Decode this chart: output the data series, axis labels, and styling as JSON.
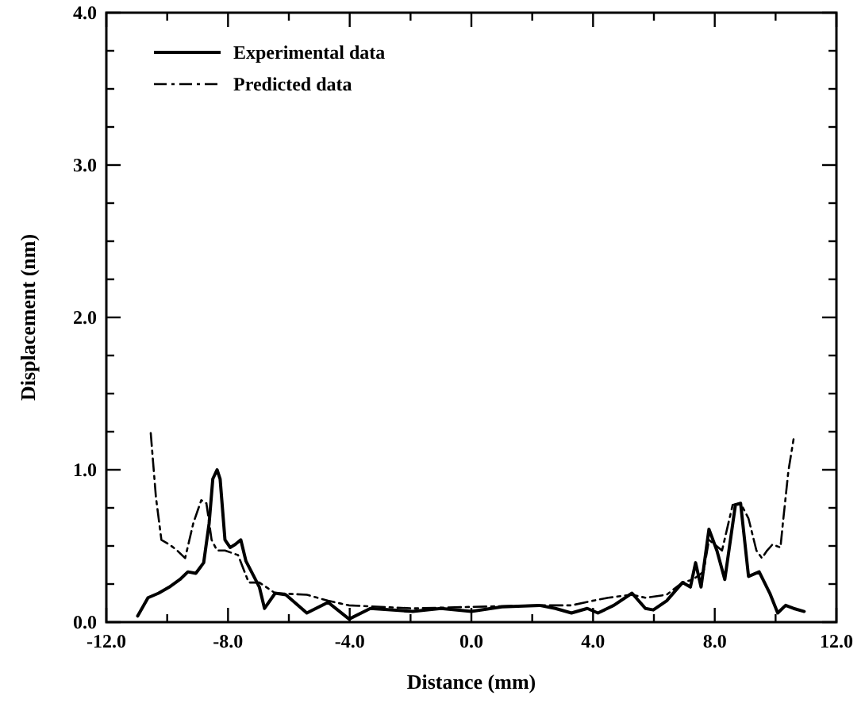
{
  "chart_data": {
    "type": "line",
    "xlabel": "Distance (mm)",
    "ylabel": "Displacement (nm)",
    "xlim": [
      -12,
      12
    ],
    "ylim": [
      0,
      4
    ],
    "xticks": [
      {
        "value": -12,
        "label": "-12.0"
      },
      {
        "value": -10,
        "label": null
      },
      {
        "value": -8,
        "label": "-8.0"
      },
      {
        "value": -6,
        "label": null
      },
      {
        "value": -4,
        "label": "-4.0"
      },
      {
        "value": -2,
        "label": null
      },
      {
        "value": 0,
        "label": "0.0"
      },
      {
        "value": 2,
        "label": null
      },
      {
        "value": 4,
        "label": "4.0"
      },
      {
        "value": 6,
        "label": null
      },
      {
        "value": 8,
        "label": "8.0"
      },
      {
        "value": 10,
        "label": null
      },
      {
        "value": 12,
        "label": "12.0"
      }
    ],
    "yticks": [
      {
        "value": 0,
        "label": "0.0"
      },
      {
        "value": 0.25,
        "label": null
      },
      {
        "value": 0.5,
        "label": null
      },
      {
        "value": 0.75,
        "label": null
      },
      {
        "value": 1,
        "label": "1.0"
      },
      {
        "value": 1.25,
        "label": null
      },
      {
        "value": 1.5,
        "label": null
      },
      {
        "value": 1.75,
        "label": null
      },
      {
        "value": 2,
        "label": "2.0"
      },
      {
        "value": 2.25,
        "label": null
      },
      {
        "value": 2.5,
        "label": null
      },
      {
        "value": 2.75,
        "label": null
      },
      {
        "value": 3,
        "label": "3.0"
      },
      {
        "value": 3.25,
        "label": null
      },
      {
        "value": 3.5,
        "label": null
      },
      {
        "value": 3.75,
        "label": null
      },
      {
        "value": 4,
        "label": "4.0"
      }
    ],
    "grid": false,
    "legend": "top left",
    "marker": "none",
    "series": [
      {
        "name": "Experimental data",
        "color": "#000000",
        "line_style": "solid",
        "x": [
          -10.97,
          -10.63,
          -10.28,
          -9.93,
          -9.58,
          -9.32,
          -9.06,
          -8.8,
          -8.62,
          -8.5,
          -8.36,
          -8.26,
          -8.1,
          -7.93,
          -7.76,
          -7.58,
          -7.41,
          -7.15,
          -6.97,
          -6.8,
          -6.45,
          -6.1,
          -5.41,
          -4.71,
          -4.02,
          -3.32,
          -1.93,
          -1.0,
          0.0,
          1.0,
          2.24,
          2.76,
          3.29,
          3.81,
          4.16,
          4.68,
          5.28,
          5.72,
          5.98,
          6.42,
          6.94,
          7.2,
          7.37,
          7.55,
          7.81,
          8.07,
          8.33,
          8.68,
          8.85,
          9.11,
          9.46,
          9.81,
          10.07,
          10.33,
          10.59,
          10.94
        ],
        "values": [
          0.04,
          0.16,
          0.19,
          0.23,
          0.28,
          0.33,
          0.32,
          0.39,
          0.65,
          0.94,
          1.0,
          0.94,
          0.54,
          0.49,
          0.51,
          0.54,
          0.4,
          0.3,
          0.23,
          0.09,
          0.19,
          0.18,
          0.06,
          0.13,
          0.02,
          0.09,
          0.07,
          0.09,
          0.07,
          0.1,
          0.11,
          0.09,
          0.06,
          0.09,
          0.06,
          0.11,
          0.19,
          0.09,
          0.08,
          0.14,
          0.26,
          0.23,
          0.39,
          0.23,
          0.61,
          0.47,
          0.28,
          0.77,
          0.78,
          0.3,
          0.33,
          0.19,
          0.06,
          0.11,
          0.09,
          0.07
        ]
      },
      {
        "name": "Predicted data",
        "color": "#000000",
        "line_style": "dashed",
        "x": [
          -10.54,
          -10.37,
          -10.19,
          -9.93,
          -9.67,
          -9.41,
          -9.14,
          -8.88,
          -8.71,
          -8.54,
          -8.36,
          -8.1,
          -7.67,
          -7.32,
          -6.97,
          -6.45,
          -5.41,
          -4.71,
          -4.02,
          -1.93,
          0.0,
          2.24,
          3.29,
          3.98,
          4.5,
          5.28,
          5.72,
          6.42,
          6.94,
          7.29,
          7.63,
          7.81,
          8.24,
          8.59,
          8.85,
          9.11,
          9.37,
          9.55,
          9.72,
          9.9,
          10.16,
          10.24,
          10.42,
          10.59
        ],
        "values": [
          1.24,
          0.82,
          0.54,
          0.51,
          0.47,
          0.42,
          0.65,
          0.8,
          0.78,
          0.54,
          0.47,
          0.47,
          0.44,
          0.26,
          0.26,
          0.19,
          0.18,
          0.14,
          0.11,
          0.09,
          0.1,
          0.11,
          0.11,
          0.14,
          0.16,
          0.18,
          0.16,
          0.18,
          0.26,
          0.28,
          0.33,
          0.54,
          0.47,
          0.77,
          0.78,
          0.68,
          0.47,
          0.42,
          0.47,
          0.51,
          0.49,
          0.65,
          0.99,
          1.2
        ]
      }
    ]
  }
}
